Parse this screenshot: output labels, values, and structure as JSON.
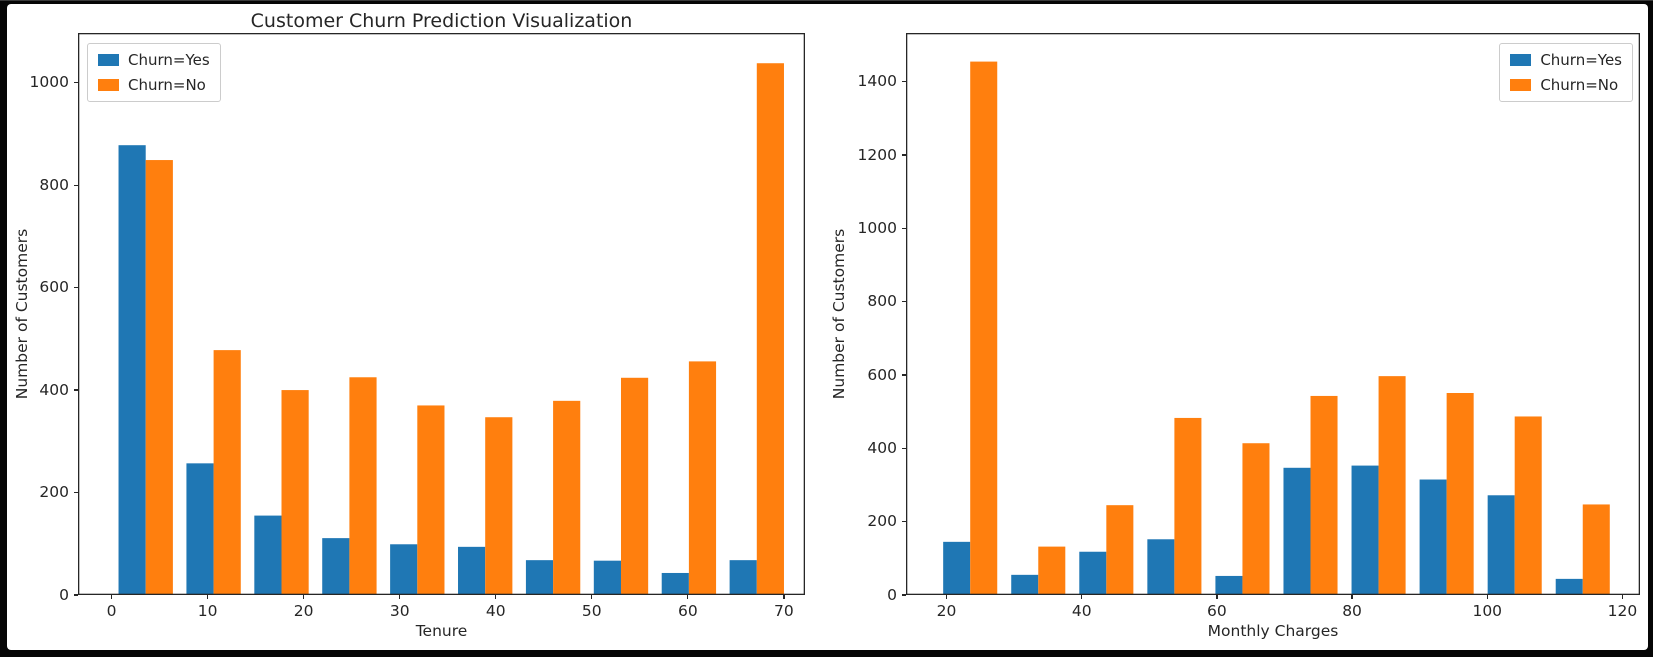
{
  "figure": {
    "background_color": "#060606",
    "canvas_color": "#ffffff",
    "text_color": "#262626",
    "legend": {
      "yes_label": "Churn=Yes",
      "no_label": "Churn=No"
    },
    "colors": {
      "churn_yes": "#1f77b4",
      "churn_no": "#ff7f0e"
    }
  },
  "chart_data": [
    {
      "type": "bar",
      "title": "Customer Churn Prediction Visualization",
      "xlabel": "Tenure",
      "ylabel": "Number of Customers",
      "legend_position": "upper-left",
      "grid": false,
      "xlim": [
        -3.5,
        72.2
      ],
      "ylim": [
        0,
        1097
      ],
      "xticks": [
        0,
        10,
        20,
        30,
        40,
        50,
        60,
        70
      ],
      "yticks": [
        0,
        200,
        400,
        600,
        800,
        1000
      ],
      "bin_centers": [
        3.55,
        10.62,
        17.69,
        24.76,
        31.83,
        38.9,
        45.97,
        53.04,
        60.11,
        67.18
      ],
      "bar_width": 2.83,
      "series": [
        {
          "name": "Churn=Yes",
          "color": "#1f77b4",
          "values": [
            878,
            257,
            155,
            111,
            99,
            94,
            68,
            67,
            43,
            68
          ]
        },
        {
          "name": "Churn=No",
          "color": "#ff7f0e",
          "values": [
            849,
            478,
            400,
            425,
            370,
            347,
            379,
            424,
            456,
            1038
          ]
        }
      ]
    },
    {
      "type": "bar",
      "title": "",
      "xlabel": "Monthly Charges",
      "ylabel": "Number of Customers",
      "legend_position": "upper-right",
      "grid": false,
      "xlim": [
        14,
        122.6
      ],
      "ylim": [
        0,
        1533
      ],
      "xticks": [
        20,
        40,
        60,
        80,
        100,
        120
      ],
      "yticks": [
        0,
        200,
        400,
        600,
        800,
        1000,
        1200,
        1400
      ],
      "bin_centers": [
        23.5,
        33.57,
        43.64,
        53.71,
        63.78,
        73.85,
        83.92,
        93.99,
        104.06,
        114.13
      ],
      "bar_width": 4.0,
      "series": [
        {
          "name": "Churn=Yes",
          "color": "#1f77b4",
          "values": [
            145,
            55,
            118,
            152,
            52,
            347,
            353,
            315,
            272,
            44
          ]
        },
        {
          "name": "Churn=No",
          "color": "#ff7f0e",
          "values": [
            1455,
            132,
            245,
            483,
            414,
            543,
            597,
            551,
            487,
            247
          ]
        }
      ]
    }
  ]
}
